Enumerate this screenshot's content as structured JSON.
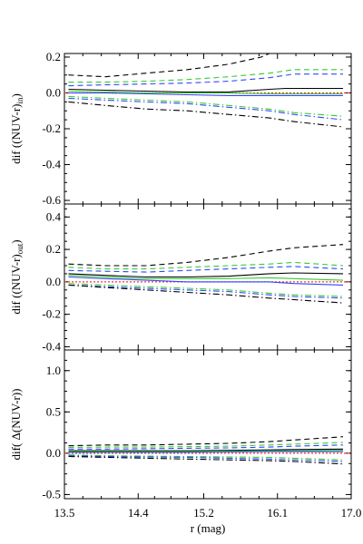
{
  "chart_data": [
    {
      "type": "line",
      "ylabel": "dif ((NUV-r)",
      "ylabel_subscript": "in",
      "ylabel_suffix": ")",
      "ylim": [
        -0.62,
        0.22
      ],
      "yticks": [
        0.2,
        0.0,
        -0.2,
        -0.4,
        -0.6
      ],
      "ytick_labels": [
        "0.2",
        "0.0",
        "-0.2",
        "-0.4",
        "-0.6"
      ],
      "reference_line_color": "#ff3333",
      "series": [
        {
          "style": "dashed",
          "color": "#000000",
          "x": [
            13.55,
            14.0,
            14.5,
            15.0,
            15.5,
            15.9,
            16.2
          ],
          "y": [
            0.1,
            0.09,
            0.11,
            0.13,
            0.16,
            0.2,
            0.26
          ]
        },
        {
          "style": "dashed",
          "color": "#33cc33",
          "x": [
            13.55,
            14.0,
            14.5,
            15.0,
            15.5,
            16.0,
            16.3,
            16.9
          ],
          "y": [
            0.06,
            0.06,
            0.065,
            0.075,
            0.09,
            0.11,
            0.13,
            0.13
          ]
        },
        {
          "style": "dashed",
          "color": "#3344ff",
          "x": [
            13.55,
            14.0,
            14.5,
            15.0,
            15.5,
            16.0,
            16.3,
            16.9
          ],
          "y": [
            0.04,
            0.045,
            0.05,
            0.055,
            0.065,
            0.085,
            0.105,
            0.105
          ]
        },
        {
          "style": "solid",
          "color": "#000000",
          "x": [
            13.55,
            14.0,
            14.5,
            15.0,
            15.5,
            16.0,
            16.2,
            16.9
          ],
          "y": [
            0.02,
            0.015,
            0.01,
            0.005,
            0.005,
            0.02,
            0.025,
            0.025
          ]
        },
        {
          "style": "solid",
          "color": "#33cc33",
          "x": [
            13.55,
            14.0,
            14.5,
            15.0,
            15.5,
            16.0,
            16.9
          ],
          "y": [
            0.01,
            0.005,
            0.0,
            0.0,
            0.0,
            -0.005,
            -0.005
          ]
        },
        {
          "style": "solid",
          "color": "#3344ff",
          "x": [
            13.55,
            14.0,
            14.5,
            15.0,
            15.5,
            16.0,
            16.9
          ],
          "y": [
            0.0,
            0.0,
            -0.005,
            -0.01,
            -0.015,
            -0.015,
            -0.015
          ]
        },
        {
          "style": "dashdot",
          "color": "#33cc33",
          "x": [
            13.55,
            14.0,
            14.5,
            15.0,
            15.5,
            16.0,
            16.3,
            16.9
          ],
          "y": [
            -0.02,
            -0.03,
            -0.04,
            -0.05,
            -0.07,
            -0.09,
            -0.11,
            -0.13
          ]
        },
        {
          "style": "dashdot",
          "color": "#3344ff",
          "x": [
            13.55,
            14.0,
            14.5,
            15.0,
            15.5,
            16.0,
            16.3,
            16.9
          ],
          "y": [
            -0.03,
            -0.04,
            -0.05,
            -0.06,
            -0.08,
            -0.1,
            -0.12,
            -0.15
          ]
        },
        {
          "style": "dashdot",
          "color": "#000000",
          "x": [
            13.55,
            14.0,
            14.5,
            15.0,
            15.5,
            16.0,
            16.3,
            16.9
          ],
          "y": [
            -0.05,
            -0.07,
            -0.09,
            -0.1,
            -0.12,
            -0.14,
            -0.16,
            -0.19
          ]
        }
      ]
    },
    {
      "type": "line",
      "ylabel": "dif  ((NUV-r)",
      "ylabel_subscript": "out",
      "ylabel_suffix": ")",
      "ylim": [
        -0.42,
        0.48
      ],
      "yticks": [
        0.4,
        0.2,
        0.0,
        -0.2,
        -0.4
      ],
      "ytick_labels": [
        "0.4",
        "0.2",
        "0.0",
        "-0.2",
        "-0.4"
      ],
      "reference_line_color": "#ff3333",
      "series": [
        {
          "style": "dashed",
          "color": "#000000",
          "x": [
            13.55,
            14.0,
            14.5,
            15.0,
            15.5,
            16.0,
            16.3,
            16.9
          ],
          "y": [
            0.11,
            0.1,
            0.1,
            0.12,
            0.15,
            0.19,
            0.21,
            0.23
          ]
        },
        {
          "style": "dashed",
          "color": "#33cc33",
          "x": [
            13.55,
            14.0,
            14.5,
            15.0,
            15.5,
            16.0,
            16.3,
            16.9
          ],
          "y": [
            0.09,
            0.08,
            0.08,
            0.09,
            0.1,
            0.11,
            0.12,
            0.1
          ]
        },
        {
          "style": "dashed",
          "color": "#3344ff",
          "x": [
            13.55,
            14.0,
            14.5,
            15.0,
            15.5,
            16.0,
            16.3,
            16.9
          ],
          "y": [
            0.07,
            0.065,
            0.06,
            0.07,
            0.08,
            0.09,
            0.095,
            0.08
          ]
        },
        {
          "style": "solid",
          "color": "#000000",
          "x": [
            13.55,
            14.0,
            14.5,
            15.0,
            15.5,
            16.0,
            16.3,
            16.9
          ],
          "y": [
            0.05,
            0.04,
            0.03,
            0.03,
            0.035,
            0.05,
            0.055,
            0.05
          ]
        },
        {
          "style": "solid",
          "color": "#33cc33",
          "x": [
            13.55,
            14.0,
            14.5,
            15.0,
            15.5,
            16.0,
            16.3,
            16.9
          ],
          "y": [
            0.04,
            0.03,
            0.02,
            0.02,
            0.02,
            0.025,
            0.02,
            0.01
          ]
        },
        {
          "style": "solid",
          "color": "#3344ff",
          "x": [
            13.55,
            14.0,
            14.5,
            15.0,
            15.5,
            16.0,
            16.3,
            16.9
          ],
          "y": [
            0.03,
            0.02,
            0.01,
            0.0,
            0.0,
            0.0,
            -0.01,
            -0.02
          ]
        },
        {
          "style": "dashdot",
          "color": "#33cc33",
          "x": [
            13.55,
            14.0,
            14.5,
            15.0,
            15.5,
            16.0,
            16.3,
            16.9
          ],
          "y": [
            -0.01,
            -0.02,
            -0.03,
            -0.04,
            -0.05,
            -0.07,
            -0.08,
            -0.09
          ]
        },
        {
          "style": "dashdot",
          "color": "#3344ff",
          "x": [
            13.55,
            14.0,
            14.5,
            15.0,
            15.5,
            16.0,
            16.3,
            16.9
          ],
          "y": [
            -0.02,
            -0.03,
            -0.04,
            -0.05,
            -0.06,
            -0.08,
            -0.09,
            -0.1
          ]
        },
        {
          "style": "dashdot",
          "color": "#000000",
          "x": [
            13.55,
            14.0,
            14.5,
            15.0,
            15.5,
            16.0,
            16.3,
            16.9
          ],
          "y": [
            -0.02,
            -0.035,
            -0.05,
            -0.065,
            -0.08,
            -0.1,
            -0.11,
            -0.13
          ]
        }
      ]
    },
    {
      "type": "line",
      "ylabel": "dif(  Δ(NUV-r))",
      "ylim": [
        -0.55,
        1.25
      ],
      "yticks": [
        1.0,
        0.5,
        0.0,
        -0.5
      ],
      "ytick_labels": [
        "1.0",
        "0.5",
        "0.0",
        "-0.5"
      ],
      "xlabel": "r (mag)",
      "xlim": [
        13.5,
        17.0
      ],
      "xticks": [
        13.5,
        14.4,
        15.2,
        16.1,
        17.0
      ],
      "xtick_labels": [
        "13.5",
        "14.4",
        "15.2",
        "16.1",
        "17.0"
      ],
      "reference_line_color": "#ff3333",
      "series": [
        {
          "style": "dashed",
          "color": "#000000",
          "x": [
            13.55,
            14.0,
            14.5,
            15.0,
            15.5,
            16.0,
            16.3,
            16.9
          ],
          "y": [
            0.09,
            0.1,
            0.1,
            0.11,
            0.12,
            0.14,
            0.16,
            0.2
          ]
        },
        {
          "style": "dashed",
          "color": "#33cc33",
          "x": [
            13.55,
            14.0,
            14.5,
            15.0,
            15.5,
            16.0,
            16.3,
            16.9
          ],
          "y": [
            0.07,
            0.075,
            0.075,
            0.08,
            0.085,
            0.1,
            0.11,
            0.13
          ]
        },
        {
          "style": "dashed",
          "color": "#3344ff",
          "x": [
            13.55,
            14.0,
            14.5,
            15.0,
            15.5,
            16.0,
            16.3,
            16.9
          ],
          "y": [
            0.05,
            0.05,
            0.055,
            0.06,
            0.065,
            0.075,
            0.085,
            0.1
          ]
        },
        {
          "style": "solid",
          "color": "#000000",
          "x": [
            13.55,
            14.0,
            14.5,
            15.0,
            15.5,
            16.0,
            16.3,
            16.9
          ],
          "y": [
            0.03,
            0.03,
            0.03,
            0.03,
            0.035,
            0.04,
            0.045,
            0.05
          ]
        },
        {
          "style": "solid",
          "color": "#33cc33",
          "x": [
            13.55,
            14.0,
            14.5,
            15.0,
            15.5,
            16.0,
            16.3,
            16.9
          ],
          "y": [
            0.02,
            0.02,
            0.02,
            0.02,
            0.025,
            0.03,
            0.03,
            0.035
          ]
        },
        {
          "style": "solid",
          "color": "#3344ff",
          "x": [
            13.55,
            14.0,
            14.5,
            15.0,
            15.5,
            16.0,
            16.3,
            16.9
          ],
          "y": [
            0.01,
            0.01,
            0.01,
            0.01,
            0.015,
            0.02,
            0.02,
            0.02
          ]
        },
        {
          "style": "dashdot",
          "color": "#33cc33",
          "x": [
            13.55,
            14.0,
            14.5,
            15.0,
            15.5,
            16.0,
            16.3,
            16.9
          ],
          "y": [
            -0.02,
            -0.03,
            -0.035,
            -0.04,
            -0.045,
            -0.05,
            -0.06,
            -0.08
          ]
        },
        {
          "style": "dashdot",
          "color": "#3344ff",
          "x": [
            13.55,
            14.0,
            14.5,
            15.0,
            15.5,
            16.0,
            16.3,
            16.9
          ],
          "y": [
            -0.03,
            -0.04,
            -0.045,
            -0.05,
            -0.06,
            -0.07,
            -0.08,
            -0.1
          ]
        },
        {
          "style": "dashdot",
          "color": "#000000",
          "x": [
            13.55,
            14.0,
            14.5,
            15.0,
            15.5,
            16.0,
            16.3,
            16.9
          ],
          "y": [
            -0.04,
            -0.05,
            -0.06,
            -0.07,
            -0.08,
            -0.09,
            -0.1,
            -0.13
          ]
        }
      ]
    }
  ]
}
